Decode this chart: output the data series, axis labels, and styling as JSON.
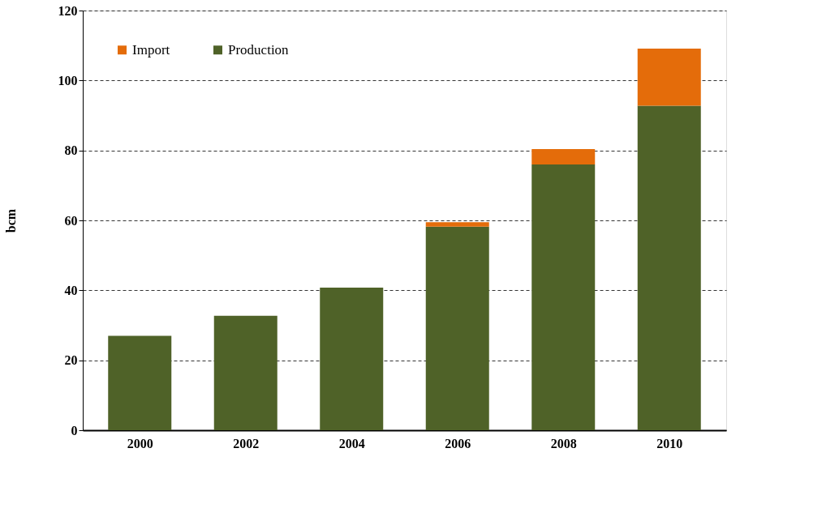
{
  "chart_data": {
    "type": "bar",
    "stacked": true,
    "ylabel": "bcm",
    "categories": [
      "2000",
      "2002",
      "2004",
      "2006",
      "2008",
      "2010"
    ],
    "series": [
      {
        "name": "Production",
        "color": "#4f6228",
        "values": [
          27.0,
          32.7,
          40.8,
          58.2,
          76.0,
          92.8
        ]
      },
      {
        "name": "Import",
        "color": "#e46c0a",
        "values": [
          null,
          null,
          null,
          1.3,
          4.4,
          16.3
        ]
      }
    ],
    "ylim": [
      0,
      120
    ],
    "yticks": [
      0,
      20,
      40,
      60,
      80,
      100,
      120
    ],
    "grid": "y",
    "legend": "top left"
  }
}
